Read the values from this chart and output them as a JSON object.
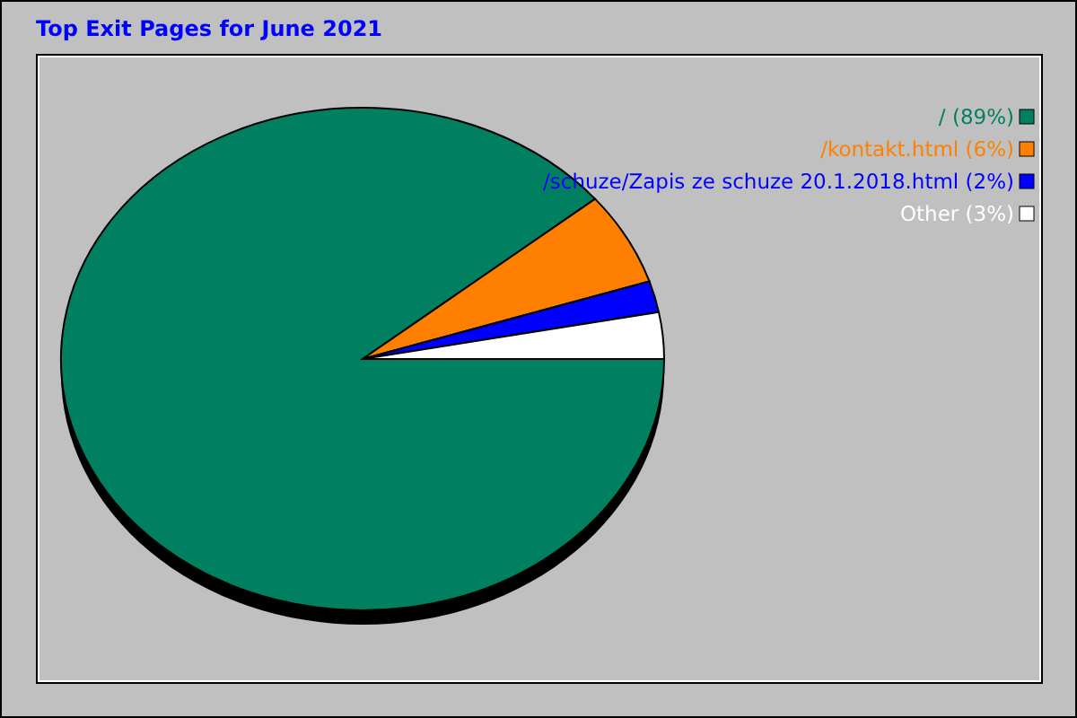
{
  "chart_data": {
    "type": "pie",
    "title": "Top Exit Pages for June 2021",
    "categories": [
      "/ (89%)",
      "/kontakt.html (6%)",
      "/schuze/Zapis ze schuze 20.1.2018.html (2%)",
      "Other (3%)"
    ],
    "values": [
      89,
      6,
      2,
      3
    ],
    "colors": [
      "#008060",
      "#ff8000",
      "#0000ff",
      "#ffffff"
    ],
    "legend": "top right"
  }
}
